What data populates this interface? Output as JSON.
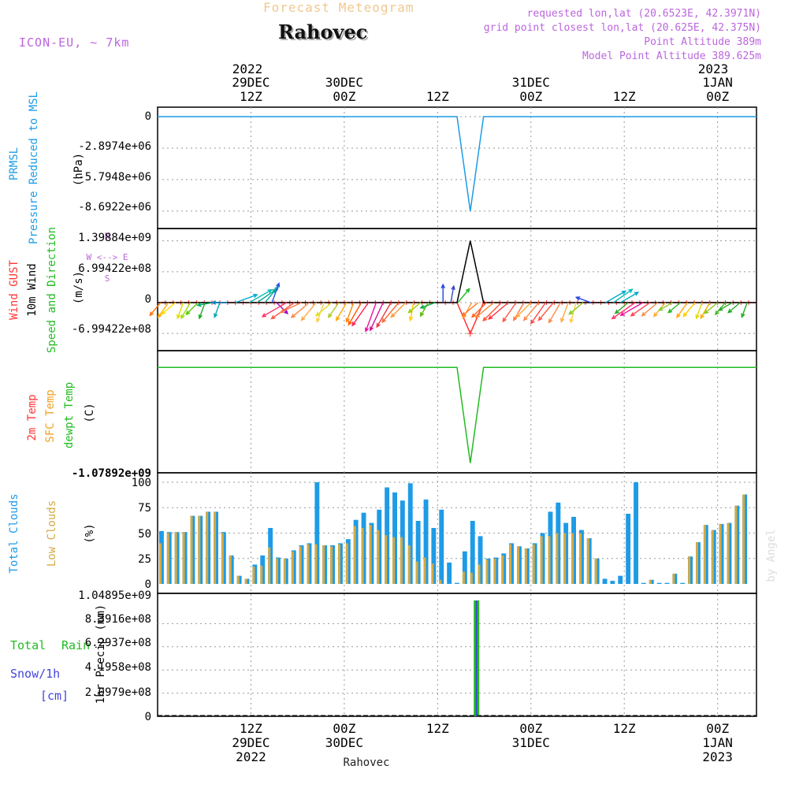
{
  "header": {
    "forecast_title": "Forecast Meteogram",
    "location": "Rahovec",
    "model": "ICON-EU, ~ 7km",
    "requested": "requested lon,lat (20.6523E, 42.3971N)",
    "grid_point": "grid point closest lon,lat (20.625E, 42.375N)",
    "point_altitude": "Point Altitude 389m",
    "model_altitude": "Model Point Altitude 389.625m",
    "footer_location": "Rahovec",
    "watermark": "by Angel"
  },
  "colors": {
    "pressure": "#1e9be6",
    "gust": "#ff3333",
    "wind_label": "#000000",
    "wind_dir": "#22bb22",
    "compass": "#bb66dd",
    "temp2m": "#ff3333",
    "sfc_temp": "#f0a020",
    "dewpt": "#22bb22",
    "total_clouds": "#1e9be6",
    "low_clouds": "#d4aa44",
    "rain": "#22bb22",
    "snow": "#4444dd",
    "header_title": "#f0c890",
    "header_meta": "#bb66dd"
  },
  "time_axis": {
    "top_year_left": "2022",
    "top_year_right": "2023",
    "ticks": [
      {
        "t": 12,
        "hour": "12Z",
        "date": "29DEC",
        "year": "2022"
      },
      {
        "t": 24,
        "hour": "00Z",
        "date": "30DEC",
        "year": ""
      },
      {
        "t": 36,
        "hour": "12Z",
        "date": "",
        "year": ""
      },
      {
        "t": 48,
        "hour": "00Z",
        "date": "31DEC",
        "year": ""
      },
      {
        "t": 60,
        "hour": "12Z",
        "date": "",
        "year": ""
      },
      {
        "t": 72,
        "hour": "00Z",
        "date": "1JAN",
        "year": "2023"
      }
    ]
  },
  "panels": {
    "pressure": {
      "label1": "PRMSL",
      "label2": "Pressure Reduced to MSL",
      "unit": "(hPa)",
      "ticks": [
        "0",
        "-2.8974e+06",
        "-5.7948e+06",
        "-8.6922e+06"
      ]
    },
    "wind": {
      "label_gust": "Wind GUST",
      "label_wind": "10m Wind",
      "label_dir": "Speed and Direction",
      "unit": "(m/s)",
      "ticks": [
        "1.39884e+09",
        "6.99422e+08",
        "0",
        "-6.99422e+08"
      ],
      "compass": {
        "n": "N",
        "s": "S",
        "ew": "W <--> E"
      }
    },
    "temp": {
      "label_2m": "2m Temp",
      "label_sfc": "SFC Temp",
      "label_dew": "dewpt Temp",
      "unit": "(C)",
      "tick_bottom": "-1.07892e+09"
    },
    "clouds": {
      "label_total": "Total Clouds",
      "label_low": "Low Clouds",
      "unit": "(%)",
      "ticks": [
        "100",
        "75",
        "50",
        "25",
        "0"
      ]
    },
    "precip": {
      "label_total": "Total",
      "label_rain": "Rain",
      "label_snow": "Snow/1h",
      "label_cm": "[cm]",
      "unit": "1hr Precip (mm)",
      "ticks": [
        "1.04895e+09",
        "8.3916e+08",
        "6.2937e+08",
        "4.1958e+08",
        "2.0979e+08",
        "0"
      ]
    }
  },
  "chart_data": {
    "type": "meteogram",
    "x_unit": "hours from 28DEC 2022 23Z",
    "xlim": [
      0,
      77
    ],
    "pressure": {
      "ylim": [
        -9500000,
        0
      ],
      "values": [
        [
          0,
          0
        ],
        [
          38.5,
          0
        ],
        [
          40.2,
          -8700000
        ],
        [
          41.9,
          0
        ],
        [
          77,
          0
        ]
      ]
    },
    "wind": {
      "ylim": [
        -1000000000,
        1500000000
      ],
      "wind_speed": [
        [
          0,
          0
        ],
        [
          38.5,
          0
        ],
        [
          40.2,
          1398840000
        ],
        [
          41.9,
          0
        ],
        [
          77,
          0
        ]
      ],
      "gust": [
        [
          0,
          0
        ],
        [
          38.5,
          0
        ],
        [
          40.2,
          -700000000
        ],
        [
          41.9,
          0
        ],
        [
          77,
          0
        ]
      ]
    },
    "temp": {
      "ylim": [
        -1100000000,
        100000000
      ],
      "dewpt": [
        [
          0,
          0
        ],
        [
          38.5,
          0
        ],
        [
          40.2,
          -1078920000
        ],
        [
          41.9,
          0
        ],
        [
          77,
          0
        ]
      ]
    },
    "clouds": {
      "ylim": [
        0,
        100
      ],
      "total": [
        52,
        51,
        51,
        51,
        67,
        67,
        71,
        71,
        51,
        28,
        8,
        5,
        19,
        28,
        55,
        26,
        25,
        33,
        38,
        40,
        100,
        38,
        38,
        40,
        44,
        63,
        70,
        60,
        73,
        95,
        90,
        82,
        99,
        62,
        83,
        55,
        73,
        21,
        1,
        32,
        62,
        47,
        25,
        26,
        30,
        40,
        37,
        35,
        40,
        50,
        71,
        80,
        60,
        66,
        53,
        45,
        25,
        5,
        3,
        8,
        69,
        100,
        1,
        4,
        1,
        1,
        10,
        1,
        27,
        41,
        58,
        53,
        59,
        60,
        77,
        88
      ],
      "low": [
        40,
        50,
        51,
        51,
        67,
        67,
        71,
        71,
        50,
        28,
        8,
        5,
        17,
        18,
        36,
        25,
        25,
        32,
        37,
        39,
        39,
        38,
        37,
        39,
        40,
        57,
        55,
        58,
        53,
        48,
        46,
        46,
        38,
        22,
        26,
        20,
        4,
        0,
        0,
        12,
        11,
        19,
        24,
        25,
        28,
        39,
        37,
        35,
        39,
        47,
        47,
        50,
        50,
        50,
        50,
        45,
        25,
        0,
        0,
        0,
        0,
        0,
        0,
        4,
        0,
        0,
        10,
        0,
        27,
        41,
        58,
        53,
        59,
        60,
        77,
        88
      ]
    },
    "precip": {
      "ylim": [
        0,
        1048950000
      ],
      "rain": [
        [
          41,
          1048950000
        ]
      ],
      "snow": [
        [
          41,
          1048950000
        ]
      ]
    },
    "wind_barbs": [
      {
        "t": 0.4,
        "ws": 0.35,
        "dir": 220,
        "c": "#ff7700"
      },
      {
        "t": 1.4,
        "ws": 0.4,
        "dir": 215,
        "c": "#ffaa00"
      },
      {
        "t": 2.3,
        "ws": 0.4,
        "dir": 230,
        "c": "#ffdd00"
      },
      {
        "t": 3.3,
        "ws": 0.35,
        "dir": 200,
        "c": "#dddd00"
      },
      {
        "t": 4.2,
        "ws": 0.4,
        "dir": 210,
        "c": "#99dd00"
      },
      {
        "t": 5.2,
        "ws": 0.35,
        "dir": 225,
        "c": "#55cc00"
      },
      {
        "t": 6.1,
        "ws": 0.35,
        "dir": 200,
        "c": "#22aa22"
      },
      {
        "t": 7.1,
        "ws": 0.3,
        "dir": 260,
        "c": "#00aa66"
      },
      {
        "t": 8.0,
        "ws": 0.3,
        "dir": 200,
        "c": "#00aaaa"
      },
      {
        "t": 9.0,
        "ws": 0.3,
        "dir": 270,
        "c": "#0088cc"
      },
      {
        "t": 10.0,
        "ws": 0.6,
        "dir": 70,
        "c": "#00aacc"
      },
      {
        "t": 11.8,
        "ws": 0.7,
        "dir": 60,
        "c": "#00bbbb"
      },
      {
        "t": 12.8,
        "ws": 0.6,
        "dir": 55,
        "c": "#00aa88"
      },
      {
        "t": 13.8,
        "ws": 0.5,
        "dir": 40,
        "c": "#00aaaa"
      },
      {
        "t": 14.7,
        "ws": 0.5,
        "dir": 20,
        "c": "#2255dd"
      },
      {
        "t": 15.3,
        "ws": 0.3,
        "dir": 135,
        "c": "#9900cc"
      },
      {
        "t": 16.6,
        "ws": 0.8,
        "dir": 240,
        "c": "#ff3366"
      },
      {
        "t": 17.6,
        "ws": 0.8,
        "dir": 235,
        "c": "#ff5544"
      },
      {
        "t": 18.5,
        "ws": 0.6,
        "dir": 245,
        "c": "#ff7744"
      },
      {
        "t": 19.5,
        "ws": 0.6,
        "dir": 230,
        "c": "#ff8844"
      },
      {
        "t": 20.4,
        "ws": 0.6,
        "dir": 220,
        "c": "#ffaa44"
      },
      {
        "t": 21.4,
        "ws": 0.5,
        "dir": 200,
        "c": "#ffcc44"
      },
      {
        "t": 22.4,
        "ws": 0.5,
        "dir": 230,
        "c": "#dddd22"
      },
      {
        "t": 23.3,
        "ws": 0.4,
        "dir": 215,
        "c": "#aacc22"
      },
      {
        "t": 24.3,
        "ws": 0.5,
        "dir": 210,
        "c": "#ffaa00"
      },
      {
        "t": 25.2,
        "ws": 0.5,
        "dir": 200,
        "c": "#ff8800"
      },
      {
        "t": 26.2,
        "ws": 0.7,
        "dir": 210,
        "c": "#ff5500"
      },
      {
        "t": 27.1,
        "ws": 0.8,
        "dir": 215,
        "c": "#ff2255"
      },
      {
        "t": 28.1,
        "ws": 0.9,
        "dir": 200,
        "c": "#ee1199"
      },
      {
        "t": 29.0,
        "ws": 0.9,
        "dir": 205,
        "c": "#cc1199"
      },
      {
        "t": 30.0,
        "ws": 0.8,
        "dir": 210,
        "c": "#ee3344"
      },
      {
        "t": 31.0,
        "ws": 0.7,
        "dir": 220,
        "c": "#ff6633"
      },
      {
        "t": 31.9,
        "ws": 0.5,
        "dir": 225,
        "c": "#ff9933"
      },
      {
        "t": 32.9,
        "ws": 0.4,
        "dir": 190,
        "c": "#ffcc00"
      },
      {
        "t": 33.8,
        "ws": 0.3,
        "dir": 230,
        "c": "#99cc00"
      },
      {
        "t": 34.8,
        "ws": 0.3,
        "dir": 210,
        "c": "#55bb00"
      },
      {
        "t": 35.7,
        "ws": 0.3,
        "dir": 250,
        "c": "#00aa44"
      },
      {
        "t": 36.7,
        "ws": 0.4,
        "dir": 0,
        "c": "#2244dd"
      },
      {
        "t": 37.7,
        "ws": 0.35,
        "dir": 10,
        "c": "#3344cc"
      },
      {
        "t": 38.6,
        "ws": 0.4,
        "dir": 40,
        "c": "#22bb22"
      },
      {
        "t": 40.4,
        "ws": 0.4,
        "dir": 210,
        "c": "#ff9933"
      },
      {
        "t": 41.2,
        "ws": 0.5,
        "dir": 230,
        "c": "#ff7722"
      },
      {
        "t": 42.3,
        "ws": 0.5,
        "dir": 225,
        "c": "#ff6622"
      },
      {
        "t": 43.2,
        "ws": 0.6,
        "dir": 230,
        "c": "#ff8833"
      },
      {
        "t": 44.2,
        "ws": 0.7,
        "dir": 225,
        "c": "#ff5533"
      },
      {
        "t": 45.1,
        "ws": 0.7,
        "dir": 230,
        "c": "#ff3344"
      },
      {
        "t": 46.1,
        "ws": 0.6,
        "dir": 215,
        "c": "#ff5544"
      },
      {
        "t": 47.1,
        "ws": 0.5,
        "dir": 210,
        "c": "#ff7744"
      },
      {
        "t": 48.0,
        "ws": 0.5,
        "dir": 225,
        "c": "#ffaa33"
      },
      {
        "t": 49.0,
        "ws": 0.6,
        "dir": 220,
        "c": "#ff8844"
      },
      {
        "t": 49.9,
        "ws": 0.7,
        "dir": 215,
        "c": "#ff4444"
      },
      {
        "t": 50.9,
        "ws": 0.6,
        "dir": 220,
        "c": "#ff5544"
      },
      {
        "t": 51.8,
        "ws": 0.6,
        "dir": 210,
        "c": "#ff8844"
      },
      {
        "t": 52.8,
        "ws": 0.5,
        "dir": 200,
        "c": "#ffaa44"
      },
      {
        "t": 53.8,
        "ws": 0.5,
        "dir": 195,
        "c": "#ffcc44"
      },
      {
        "t": 54.7,
        "ws": 0.4,
        "dir": 230,
        "c": "#88cc22"
      },
      {
        "t": 55.7,
        "ws": 0.3,
        "dir": 290,
        "c": "#2244dd"
      },
      {
        "t": 57.6,
        "ws": 0.6,
        "dir": 60,
        "c": "#00aacc"
      },
      {
        "t": 58.6,
        "ws": 0.6,
        "dir": 55,
        "c": "#00bbbb"
      },
      {
        "t": 59.5,
        "ws": 0.5,
        "dir": 60,
        "c": "#00aacc"
      },
      {
        "t": 60.5,
        "ws": 0.35,
        "dir": 230,
        "c": "#22aa22"
      },
      {
        "t": 61.4,
        "ws": 0.8,
        "dir": 235,
        "c": "#ff3366"
      },
      {
        "t": 62.4,
        "ws": 0.7,
        "dir": 240,
        "c": "#ee1199"
      },
      {
        "t": 63.3,
        "ws": 0.6,
        "dir": 235,
        "c": "#ff4455"
      },
      {
        "t": 64.3,
        "ws": 0.5,
        "dir": 230,
        "c": "#ff8844"
      },
      {
        "t": 65.3,
        "ws": 0.4,
        "dir": 220,
        "c": "#ffaa33"
      },
      {
        "t": 66.2,
        "ws": 0.3,
        "dir": 240,
        "c": "#88cc22"
      },
      {
        "t": 67.2,
        "ws": 0.3,
        "dir": 230,
        "c": "#22bb22"
      },
      {
        "t": 68.1,
        "ws": 0.4,
        "dir": 215,
        "c": "#ffaa00"
      },
      {
        "t": 69.1,
        "ws": 0.4,
        "dir": 220,
        "c": "#ffcc00"
      },
      {
        "t": 70.0,
        "ws": 0.35,
        "dir": 200,
        "c": "#dddd00"
      },
      {
        "t": 71.0,
        "ws": 0.4,
        "dir": 210,
        "c": "#ffaa00"
      },
      {
        "t": 72.0,
        "ws": 0.35,
        "dir": 230,
        "c": "#88cc22"
      },
      {
        "t": 73.0,
        "ws": 0.3,
        "dir": 220,
        "c": "#44bb22"
      },
      {
        "t": 73.9,
        "ws": 0.3,
        "dir": 240,
        "c": "#22aa22"
      },
      {
        "t": 74.9,
        "ws": 0.3,
        "dir": 230,
        "c": "#22aa22"
      },
      {
        "t": 75.8,
        "ws": 0.3,
        "dir": 200,
        "c": "#22aa22"
      }
    ]
  }
}
